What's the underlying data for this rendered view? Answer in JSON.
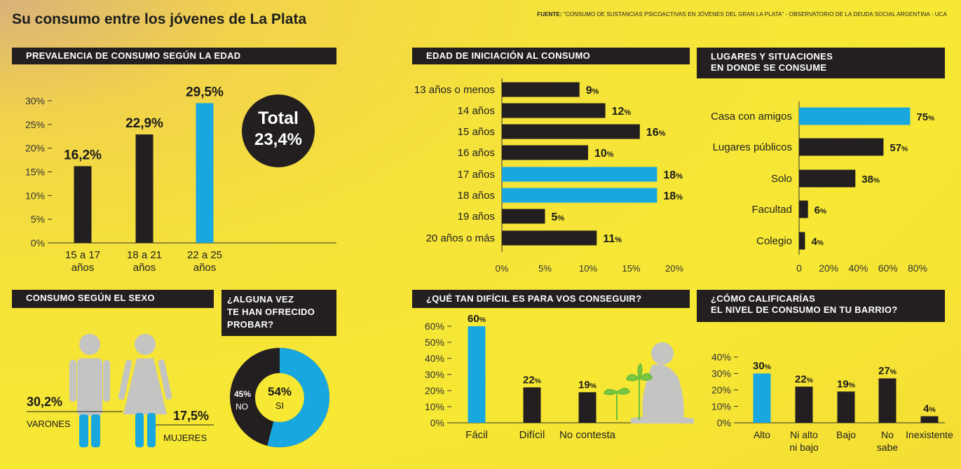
{
  "title": "Su consumo entre los jóvenes de La Plata",
  "source_label": "FUENTE:",
  "source_text": "\"CONSUMO DE SUSTANCIAS PSICOACTIVAS EN JÓVENES DEL GRAN LA PLATA\" - OBSERVATORIO DE LA DEUDA SOCIAL ARGENTINA - UCA",
  "colors": {
    "dark": "#231f20",
    "blue": "#19a7e0",
    "background": "#f7e833",
    "figure_gray": "#c4c4c2"
  },
  "total": {
    "label": "Total",
    "value": "23,4%"
  },
  "sexo": {
    "header": "CONSUMO SEGÚN EL SEXO",
    "varones_value": "30,2%",
    "varones_label": "VARONES",
    "mujeres_value": "17,5%",
    "mujeres_label": "MUJERES",
    "icons": [
      "male-person-icon",
      "female-person-icon"
    ]
  },
  "ofrecido": {
    "header_lines": [
      "¿ALGUNA VEZ",
      "TE HAN OFRECIDO",
      "PROBAR?"
    ],
    "si_value": "54%",
    "si_label": "SI",
    "no_value": "45%",
    "no_label": "NO"
  },
  "dificil_icon": "person-with-plants-icon",
  "chart_data": [
    {
      "type": "bar",
      "title": "PREVALENCIA DE CONSUMO SEGÚN LA EDAD",
      "categories": [
        [
          "15 a 17",
          "años"
        ],
        [
          "18 a 21",
          "años"
        ],
        [
          "22 a 25",
          "años"
        ]
      ],
      "values": [
        16.2,
        22.9,
        29.5
      ],
      "labels": [
        "16,2%",
        "22,9%",
        "29,5%"
      ],
      "highlight": [
        false,
        false,
        true
      ],
      "yticks": [
        "0%",
        "5%",
        "10%",
        "15%",
        "20%",
        "25%",
        "30%"
      ],
      "ylim": [
        0,
        30
      ]
    },
    {
      "type": "bar",
      "orientation": "horizontal",
      "title": "EDAD DE INICIACIÓN AL CONSUMO",
      "categories": [
        "13 años o menos",
        "14 años",
        "15 años",
        "16 años",
        "17 años",
        "18 años",
        "19 años",
        "20 años o más"
      ],
      "values": [
        9,
        12,
        16,
        10,
        18,
        18,
        5,
        11
      ],
      "labels": [
        "9",
        "12",
        "16",
        "10",
        "18",
        "18",
        "5",
        "11"
      ],
      "highlight": [
        false,
        false,
        false,
        false,
        true,
        true,
        false,
        false
      ],
      "xticks": [
        "0%",
        "5%",
        "10%",
        "15%",
        "20%"
      ],
      "xlim": [
        0,
        20
      ]
    },
    {
      "type": "bar",
      "orientation": "horizontal",
      "title_lines": [
        "LUGARES Y SITUACIONES",
        "EN DONDE SE CONSUME"
      ],
      "categories": [
        "Casa con amigos",
        "Lugares públicos",
        "Solo",
        "Facultad",
        "Colegio"
      ],
      "values": [
        75,
        57,
        38,
        6,
        4
      ],
      "labels": [
        "75",
        "57",
        "38",
        "6",
        "4"
      ],
      "highlight": [
        true,
        false,
        false,
        false,
        false
      ],
      "xticks": [
        "0",
        "20%",
        "40%",
        "60%",
        "80%"
      ],
      "xlim": [
        0,
        80
      ]
    },
    {
      "type": "bar",
      "title": "¿QUÉ TAN DIFÍCIL ES PARA VOS CONSEGUIR?",
      "categories": [
        [
          "Fácil"
        ],
        [
          "Difícil"
        ],
        [
          "No contesta"
        ]
      ],
      "values": [
        60,
        22,
        19
      ],
      "labels": [
        "60",
        "22",
        "19"
      ],
      "highlight": [
        true,
        false,
        false
      ],
      "yticks": [
        "0%",
        "10%",
        "20%",
        "30%",
        "40%",
        "50%",
        "60%"
      ],
      "ylim": [
        0,
        60
      ]
    },
    {
      "type": "bar",
      "title_lines": [
        "¿CÓMO CALIFICARÍAS",
        "EL NIVEL DE CONSUMO EN TU BARRIO?"
      ],
      "categories": [
        [
          "Alto"
        ],
        [
          "Ni alto",
          "ni bajo"
        ],
        [
          "Bajo"
        ],
        [
          "No",
          "sabe"
        ],
        [
          "Inexistente"
        ]
      ],
      "values": [
        30,
        22,
        19,
        27,
        4
      ],
      "labels": [
        "30",
        "22",
        "19",
        "27",
        "4"
      ],
      "highlight": [
        true,
        false,
        false,
        false,
        false
      ],
      "yticks": [
        "0%",
        "10%",
        "20%",
        "30%",
        "40%"
      ],
      "ylim": [
        0,
        40
      ]
    }
  ]
}
